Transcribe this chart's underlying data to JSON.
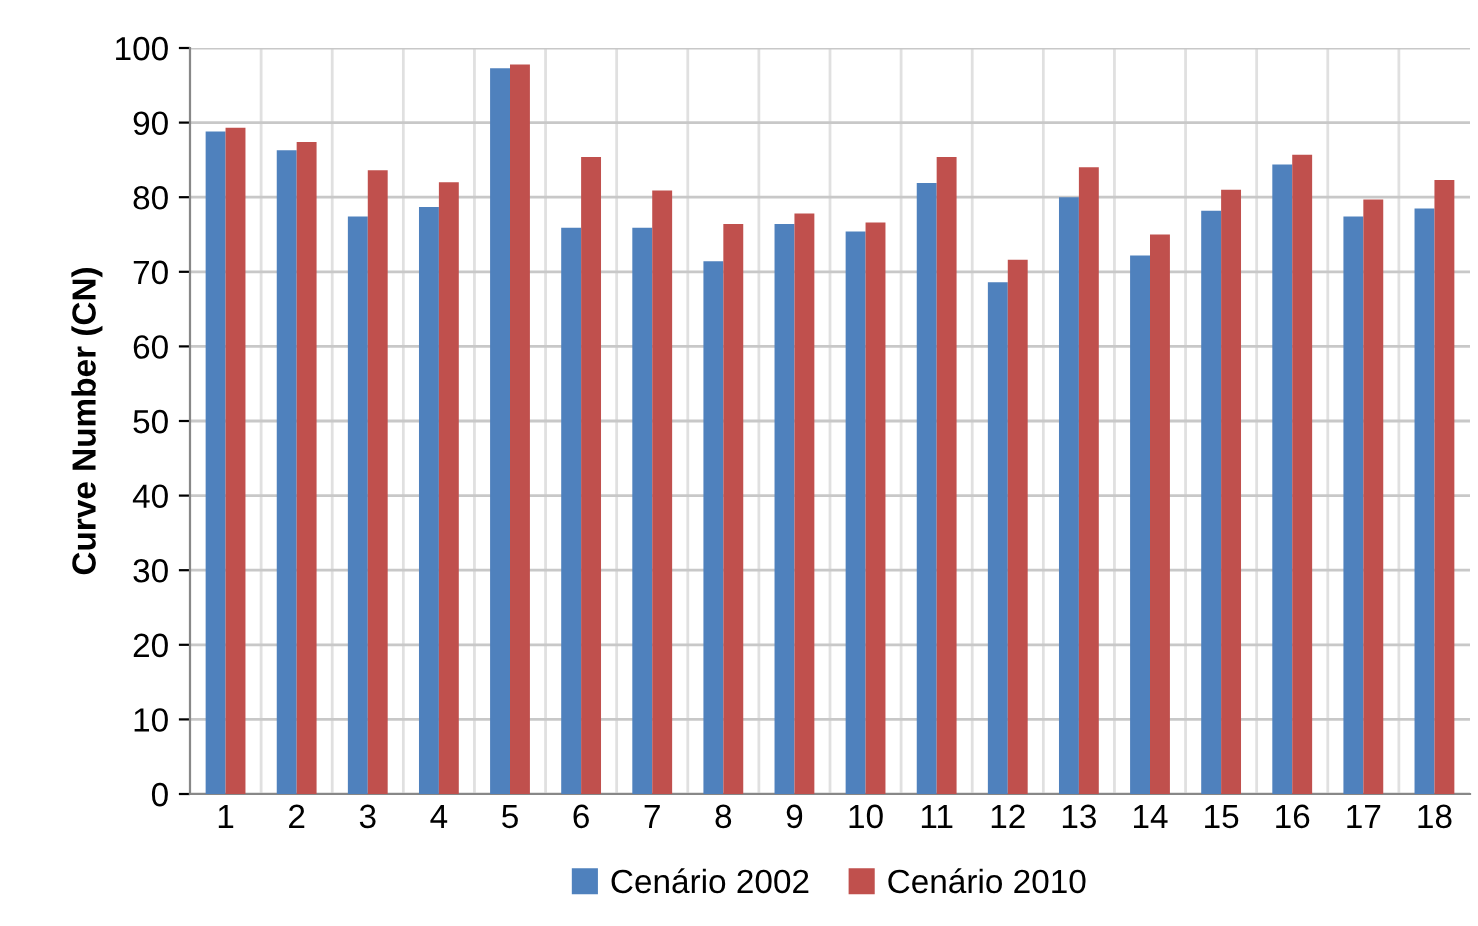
{
  "chart_data": {
    "type": "bar",
    "ylabel": "Curve Number (CN)",
    "categories": [
      "1",
      "2",
      "3",
      "4",
      "5",
      "6",
      "7",
      "8",
      "9",
      "10",
      "11",
      "12",
      "13",
      "14",
      "15",
      "16",
      "17",
      "18"
    ],
    "series": [
      {
        "name": "Cenário 2002",
        "color": "#4f81bd",
        "values": [
          88.8,
          86.3,
          77.4,
          78.7,
          97.3,
          75.9,
          75.9,
          71.4,
          76.4,
          75.4,
          81.9,
          68.6,
          80.0,
          72.2,
          78.2,
          84.4,
          77.4,
          78.5
        ]
      },
      {
        "name": "Cenário 2010",
        "color": "#c0504d",
        "values": [
          89.3,
          87.4,
          83.6,
          82.0,
          97.8,
          85.4,
          80.9,
          76.4,
          77.8,
          76.6,
          85.4,
          71.6,
          84.0,
          75.0,
          81.0,
          85.7,
          79.7,
          82.3
        ]
      }
    ],
    "ylim": [
      0,
      100
    ],
    "yticks": [
      0,
      10,
      20,
      30,
      40,
      50,
      60,
      70,
      80,
      90,
      100
    ],
    "grid": true,
    "legend": "bottom"
  }
}
